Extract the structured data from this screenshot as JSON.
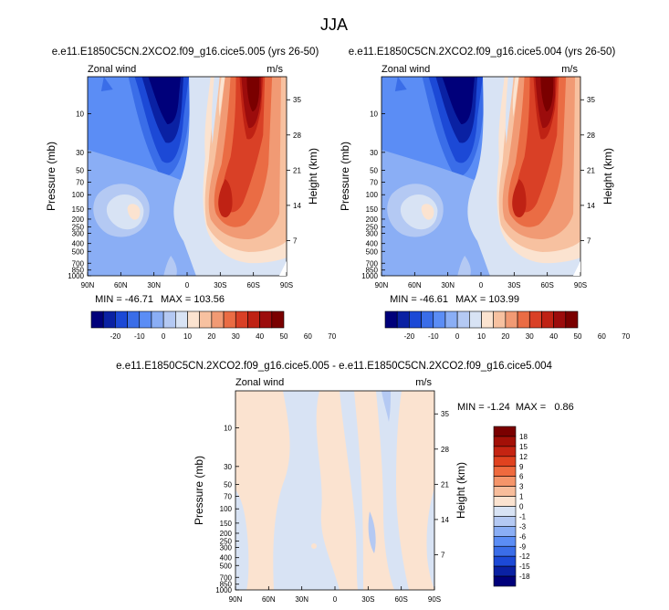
{
  "figure": {
    "season": "JJA"
  },
  "chart_data": [
    {
      "type": "heatmap",
      "title": "e.e11.E1850C5CN.2XCO2.f09_g16.cice5.005 (yrs 26-50)",
      "variable": "Zonal wind",
      "units": "m/s",
      "ylabel": "Pressure (mb)",
      "ylabel_right": "Height (km)",
      "x_ticks": [
        "90N",
        "60N",
        "30N",
        "0",
        "30S",
        "60S",
        "90S"
      ],
      "y_ticks": [
        "10",
        "30",
        "50",
        "70",
        "100",
        "150",
        "200",
        "250",
        "300",
        "400",
        "500",
        "700",
        "850",
        "1000"
      ],
      "y_right_ticks": [
        "35",
        "28",
        "21",
        "14",
        "7"
      ],
      "min_label": "MIN = -46.71",
      "max_label": "MAX = 103.56",
      "min": -46.71,
      "max": 103.56,
      "colorbar_labels": [
        "-20",
        "-10",
        "0",
        "10",
        "20",
        "30",
        "40",
        "50",
        "60",
        "70"
      ]
    },
    {
      "type": "heatmap",
      "title": "e.e11.E1850C5CN.2XCO2.f09_g16.cice5.004 (yrs 26-50)",
      "variable": "Zonal wind",
      "units": "m/s",
      "ylabel": "Pressure (mb)",
      "ylabel_right": "Height (km)",
      "x_ticks": [
        "90N",
        "60N",
        "30N",
        "0",
        "30S",
        "60S",
        "90S"
      ],
      "y_ticks": [
        "10",
        "30",
        "50",
        "70",
        "100",
        "150",
        "200",
        "250",
        "300",
        "400",
        "500",
        "700",
        "850",
        "1000"
      ],
      "y_right_ticks": [
        "35",
        "28",
        "21",
        "14",
        "7"
      ],
      "min_label": "MIN = -46.61",
      "max_label": "MAX = 103.99",
      "min": -46.61,
      "max": 103.99,
      "colorbar_labels": [
        "-20",
        "-10",
        "0",
        "10",
        "20",
        "30",
        "40",
        "50",
        "60",
        "70"
      ]
    },
    {
      "type": "heatmap",
      "title": "e.e11.E1850C5CN.2XCO2.f09_g16.cice5.005 - e.e11.E1850C5CN.2XCO2.f09_g16.cice5.004",
      "variable": "Zonal wind",
      "units": "m/s",
      "ylabel": "Pressure (mb)",
      "ylabel_right": "Height (km)",
      "x_ticks": [
        "90N",
        "60N",
        "30N",
        "0",
        "30S",
        "60S",
        "90S"
      ],
      "y_ticks": [
        "10",
        "30",
        "50",
        "70",
        "100",
        "150",
        "200",
        "250",
        "300",
        "400",
        "500",
        "700",
        "850",
        "1000"
      ],
      "y_right_ticks": [
        "35",
        "28",
        "21",
        "14",
        "7"
      ],
      "minmax_label": "MIN = -1.24  MAX =   0.86",
      "min": -1.24,
      "max": 0.86,
      "colorbar_labels": [
        "18",
        "15",
        "12",
        "9",
        "6",
        "3",
        "1",
        "0",
        "-1",
        "-3",
        "-6",
        "-9",
        "-12",
        "-15",
        "-18"
      ]
    }
  ],
  "colors": {
    "main_scale": [
      "#00007a",
      "#0a21a3",
      "#1c49d6",
      "#3a6de8",
      "#5b8df5",
      "#8aaef5",
      "#b4c9f3",
      "#d8e3f4",
      "#fbe3d0",
      "#f7c1a0",
      "#f19a74",
      "#ea6c44",
      "#d94026",
      "#bf2214",
      "#9c0c0c",
      "#7a0000"
    ],
    "diff_scale": [
      "#7a0000",
      "#a31007",
      "#c52412",
      "#e0421f",
      "#ef6a3e",
      "#f5956a",
      "#f8bd9b",
      "#fbe3d0",
      "#d8e3f4",
      "#b4c9f3",
      "#8aaef5",
      "#5b8df5",
      "#3a6de8",
      "#1c49d6",
      "#0a21a3",
      "#00007a"
    ]
  }
}
